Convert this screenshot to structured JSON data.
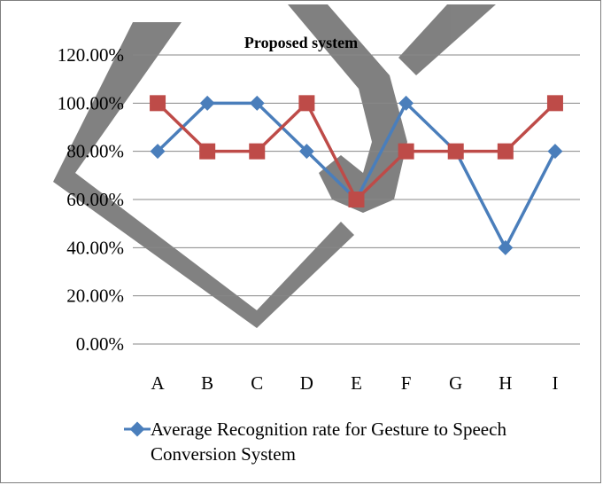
{
  "chart_data": {
    "type": "line",
    "title": "Proposed system",
    "categories": [
      "A",
      "B",
      "C",
      "D",
      "E",
      "F",
      "G",
      "H",
      "I"
    ],
    "ylim": [
      0,
      1.2
    ],
    "y_ticks": [
      "0.00%",
      "20.00%",
      "40.00%",
      "60.00%",
      "80.00%",
      "100.00%",
      "120.00%"
    ],
    "grid": true,
    "legend_position": "bottom",
    "series": [
      {
        "name": "Average Recognition rate for Gesture to Speech Conversion System",
        "color": "#4a7ebb",
        "marker": "diamond",
        "values": [
          0.8,
          1.0,
          1.0,
          0.8,
          0.6,
          1.0,
          0.8,
          0.4,
          0.8
        ]
      },
      {
        "color": "#be4b48",
        "marker": "square",
        "values": [
          1.0,
          0.8,
          0.8,
          1.0,
          0.6,
          0.8,
          0.8,
          0.8,
          1.0
        ]
      }
    ],
    "legend_lines": [
      "Average Recognition rate for Gesture to Speech",
      "Conversion System"
    ]
  }
}
